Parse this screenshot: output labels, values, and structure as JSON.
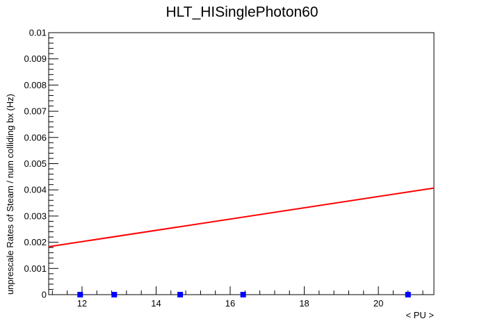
{
  "chart_data": {
    "type": "scatter",
    "title": "HLT_HISinglePhoton60",
    "xlabel": "< PU >",
    "ylabel": "unprescale Rates of Steam / num colliding bx (Hz)",
    "xlim": [
      11.1,
      21.5
    ],
    "ylim": [
      0,
      0.01
    ],
    "grid": false,
    "x_ticks": [
      12,
      14,
      16,
      18,
      20
    ],
    "x_tick_labels": [
      "12",
      "14",
      "16",
      "18",
      "20"
    ],
    "y_ticks": [
      0,
      0.001,
      0.002,
      0.003,
      0.004,
      0.005,
      0.006,
      0.007,
      0.008,
      0.009,
      0.01
    ],
    "y_tick_labels": [
      "0",
      "0.001",
      "0.002",
      "0.003",
      "0.004",
      "0.005",
      "0.006",
      "0.007",
      "0.008",
      "0.009",
      "0.01"
    ],
    "series": [
      {
        "kind": "points",
        "color": "#0000ff",
        "x": [
          11.95,
          12.87,
          14.65,
          16.35,
          20.8
        ],
        "y": [
          0,
          0,
          0,
          0,
          0
        ]
      },
      {
        "kind": "fit-line",
        "color": "#ff0000",
        "x": [
          11.1,
          21.5
        ],
        "y": [
          0.00183,
          0.00407
        ]
      }
    ]
  }
}
